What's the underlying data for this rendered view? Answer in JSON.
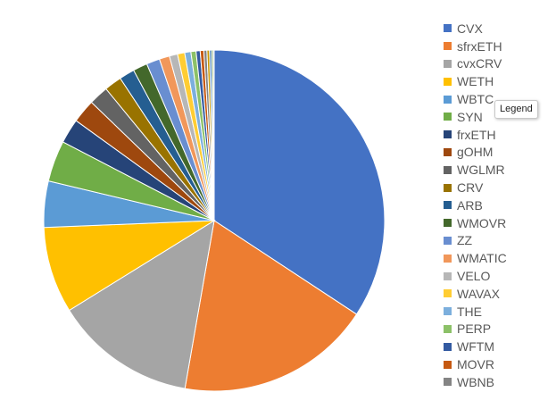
{
  "chart_data": {
    "type": "pie",
    "title": "",
    "legend_position": "right",
    "tooltip": "Legend",
    "slices": [
      {
        "label": "CVX",
        "value": 35.2,
        "color": "#4472C4"
      },
      {
        "label": "sfrxETH",
        "value": 19.0,
        "color": "#ED7D31"
      },
      {
        "label": "cvxCRV",
        "value": 13.8,
        "color": "#A5A5A5"
      },
      {
        "label": "WETH",
        "value": 8.4,
        "color": "#FFC000"
      },
      {
        "label": "WBTC",
        "value": 4.5,
        "color": "#5B9BD5"
      },
      {
        "label": "SYN",
        "value": 4.0,
        "color": "#70AD47"
      },
      {
        "label": "frxETH",
        "value": 2.4,
        "color": "#264478"
      },
      {
        "label": "gOHM",
        "value": 2.3,
        "color": "#9E480E"
      },
      {
        "label": "WGLMR",
        "value": 1.9,
        "color": "#636363"
      },
      {
        "label": "CRV",
        "value": 1.7,
        "color": "#997300"
      },
      {
        "label": "ARB",
        "value": 1.5,
        "color": "#255E91"
      },
      {
        "label": "WMOVR",
        "value": 1.4,
        "color": "#43682B"
      },
      {
        "label": "ZZ",
        "value": 1.3,
        "color": "#698ED0"
      },
      {
        "label": "WMATIC",
        "value": 1.0,
        "color": "#F1975A"
      },
      {
        "label": "VELO",
        "value": 0.8,
        "color": "#B7B7B7"
      },
      {
        "label": "WAVAX",
        "value": 0.7,
        "color": "#FFCD33"
      },
      {
        "label": "THE",
        "value": 0.6,
        "color": "#7CAFDD"
      },
      {
        "label": "PERP",
        "value": 0.5,
        "color": "#8CC168"
      },
      {
        "label": "WFTM",
        "value": 0.4,
        "color": "#335AA1"
      },
      {
        "label": "MOVR",
        "value": 0.35,
        "color": "#C65911"
      },
      {
        "label": "WBNB",
        "value": 0.3,
        "color": "#848484"
      },
      {
        "label": "",
        "value": 0.25,
        "color": "#CC9A00"
      },
      {
        "label": "",
        "value": 0.2,
        "color": "#3374B0"
      },
      {
        "label": "",
        "value": 0.15,
        "color": "#5A8B39"
      },
      {
        "label": "",
        "value": 0.1,
        "color": "#8FAADC"
      }
    ]
  }
}
